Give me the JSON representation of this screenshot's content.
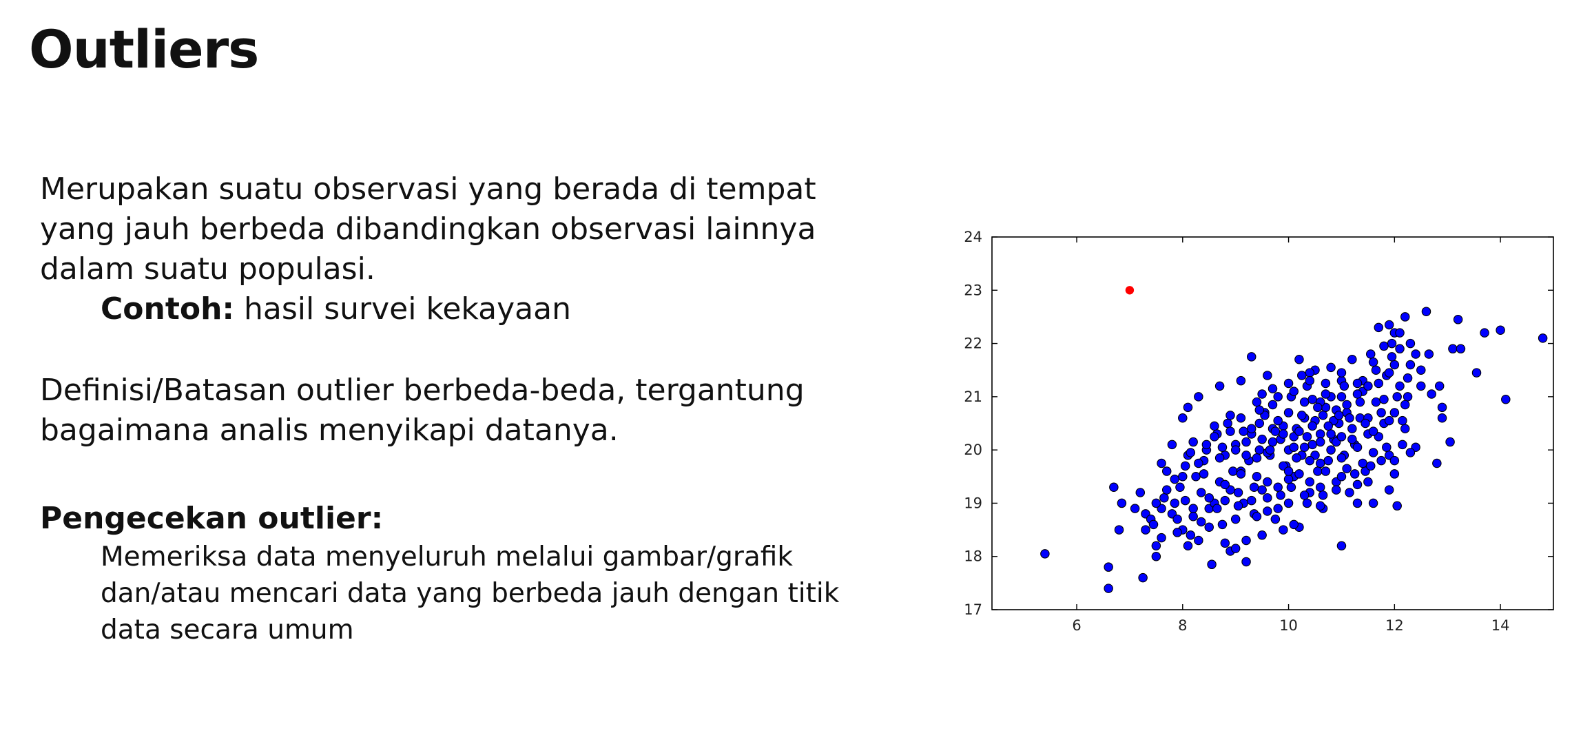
{
  "slide": {
    "title": "Outliers",
    "definition_lines": [
      "Merupakan suatu observasi yang berada di tempat",
      "yang jauh berbeda dibandingkan observasi lainnya",
      "dalam suatu populasi."
    ],
    "example_label": "Contoh:",
    "example_text": " hasil survei kekayaan",
    "note_lines": [
      "Definisi/Batasan outlier berbeda-beda, tergantung",
      "bagaimana analis menyikapi datanya."
    ],
    "check_heading": "Pengecekan outlier:",
    "check_lines": [
      "Memeriksa data menyeluruh melalui gambar/grafik",
      "dan/atau mencari data yang berbeda jauh dengan titik",
      "data secara umum"
    ]
  },
  "chart_data": {
    "type": "scatter",
    "title": "",
    "xlabel": "",
    "ylabel": "",
    "xlim": [
      4.4,
      15.0
    ],
    "ylim": [
      17,
      24
    ],
    "xticks": [
      6,
      8,
      10,
      12,
      14
    ],
    "yticks": [
      17,
      18,
      19,
      20,
      21,
      22,
      23,
      24
    ],
    "grid": false,
    "series": [
      {
        "color": "#0000ff",
        "points": [
          [
            5.4,
            18.05
          ],
          [
            6.6,
            17.8
          ],
          [
            6.6,
            17.4
          ],
          [
            6.7,
            19.3
          ],
          [
            6.8,
            18.5
          ],
          [
            6.85,
            19.0
          ],
          [
            7.1,
            18.9
          ],
          [
            7.2,
            19.2
          ],
          [
            7.25,
            17.6
          ],
          [
            7.3,
            18.8
          ],
          [
            7.4,
            18.7
          ],
          [
            7.45,
            18.6
          ],
          [
            7.5,
            18.2
          ],
          [
            7.5,
            18.0
          ],
          [
            7.6,
            18.9
          ],
          [
            7.65,
            19.1
          ],
          [
            7.7,
            19.6
          ],
          [
            7.8,
            18.8
          ],
          [
            7.85,
            19.0
          ],
          [
            7.9,
            18.7
          ],
          [
            7.95,
            19.3
          ],
          [
            8.0,
            18.5
          ],
          [
            8.05,
            19.7
          ],
          [
            8.1,
            19.9
          ],
          [
            8.15,
            18.4
          ],
          [
            8.2,
            18.9
          ],
          [
            8.25,
            19.5
          ],
          [
            8.3,
            18.3
          ],
          [
            8.35,
            19.2
          ],
          [
            8.4,
            19.8
          ],
          [
            8.45,
            20.0
          ],
          [
            8.5,
            18.9
          ],
          [
            8.55,
            17.85
          ],
          [
            8.6,
            19.0
          ],
          [
            8.65,
            20.3
          ],
          [
            8.7,
            19.4
          ],
          [
            8.75,
            18.6
          ],
          [
            8.8,
            19.9
          ],
          [
            8.85,
            20.5
          ],
          [
            8.9,
            18.1
          ],
          [
            8.95,
            19.6
          ],
          [
            9.0,
            20.1
          ],
          [
            9.0,
            18.15
          ],
          [
            9.05,
            19.2
          ],
          [
            9.1,
            20.6
          ],
          [
            9.15,
            19.0
          ],
          [
            9.2,
            17.9
          ],
          [
            9.25,
            19.8
          ],
          [
            9.3,
            20.3
          ],
          [
            9.3,
            21.75
          ],
          [
            9.35,
            18.8
          ],
          [
            9.4,
            19.5
          ],
          [
            9.45,
            20.0
          ],
          [
            9.5,
            18.4
          ],
          [
            9.55,
            20.7
          ],
          [
            9.6,
            19.1
          ],
          [
            9.65,
            19.9
          ],
          [
            9.7,
            20.4
          ],
          [
            9.75,
            18.7
          ],
          [
            9.8,
            19.3
          ],
          [
            9.85,
            20.2
          ],
          [
            9.9,
            18.5
          ],
          [
            9.95,
            19.7
          ],
          [
            10.0,
            20.0
          ],
          [
            10.0,
            19.0
          ],
          [
            10.05,
            21.0
          ],
          [
            10.1,
            19.5
          ],
          [
            10.15,
            20.4
          ],
          [
            10.2,
            18.55
          ],
          [
            10.25,
            19.9
          ],
          [
            10.3,
            20.6
          ],
          [
            10.35,
            21.2
          ],
          [
            10.4,
            19.2
          ],
          [
            10.45,
            20.1
          ],
          [
            10.5,
            21.5
          ],
          [
            10.55,
            19.6
          ],
          [
            10.6,
            20.3
          ],
          [
            10.65,
            18.9
          ],
          [
            10.7,
            20.8
          ],
          [
            10.75,
            19.8
          ],
          [
            10.8,
            21.0
          ],
          [
            10.85,
            20.2
          ],
          [
            10.9,
            19.4
          ],
          [
            10.95,
            20.5
          ],
          [
            11.0,
            18.2
          ],
          [
            11.0,
            21.3
          ],
          [
            11.05,
            19.9
          ],
          [
            11.1,
            20.7
          ],
          [
            11.15,
            19.2
          ],
          [
            11.2,
            21.7
          ],
          [
            11.25,
            20.1
          ],
          [
            11.3,
            19.0
          ],
          [
            11.35,
            20.6
          ],
          [
            11.4,
            21.1
          ],
          [
            11.45,
            19.6
          ],
          [
            11.5,
            20.3
          ],
          [
            11.55,
            21.8
          ],
          [
            11.6,
            19.0
          ],
          [
            11.65,
            20.9
          ],
          [
            11.7,
            22.3
          ],
          [
            11.75,
            19.8
          ],
          [
            11.8,
            20.5
          ],
          [
            11.85,
            21.4
          ],
          [
            11.9,
            19.9
          ],
          [
            11.95,
            22.0
          ],
          [
            12.0,
            20.7
          ],
          [
            12.05,
            18.95
          ],
          [
            12.1,
            21.9
          ],
          [
            12.15,
            20.1
          ],
          [
            12.2,
            22.5
          ],
          [
            12.25,
            21.0
          ],
          [
            12.3,
            21.6
          ],
          [
            12.6,
            22.6
          ],
          [
            12.65,
            21.8
          ],
          [
            12.8,
            19.75
          ],
          [
            12.85,
            21.2
          ],
          [
            12.9,
            20.8
          ],
          [
            13.05,
            20.15
          ],
          [
            13.1,
            21.9
          ],
          [
            13.2,
            22.45
          ],
          [
            13.25,
            21.9
          ],
          [
            13.55,
            21.45
          ],
          [
            13.7,
            22.2
          ],
          [
            14.0,
            22.25
          ],
          [
            14.1,
            20.95
          ],
          [
            14.8,
            22.1
          ],
          [
            8.0,
            20.6
          ],
          [
            8.1,
            20.8
          ],
          [
            8.3,
            21.0
          ],
          [
            8.7,
            21.2
          ],
          [
            9.1,
            21.3
          ],
          [
            9.6,
            21.4
          ],
          [
            10.2,
            21.7
          ],
          [
            10.1,
            18.6
          ],
          [
            9.2,
            18.3
          ],
          [
            8.8,
            18.25
          ],
          [
            7.9,
            18.45
          ],
          [
            10.6,
            18.95
          ],
          [
            11.3,
            19.35
          ],
          [
            11.9,
            19.25
          ],
          [
            12.0,
            19.8
          ],
          [
            12.4,
            20.05
          ],
          [
            12.2,
            20.4
          ],
          [
            12.7,
            21.05
          ],
          [
            12.9,
            20.6
          ],
          [
            11.8,
            21.95
          ],
          [
            12.0,
            22.2
          ],
          [
            12.1,
            22.2
          ],
          [
            11.6,
            21.65
          ],
          [
            10.8,
            21.55
          ],
          [
            10.4,
            21.45
          ],
          [
            9.8,
            21.0
          ],
          [
            9.4,
            20.9
          ],
          [
            9.7,
            20.85
          ],
          [
            8.9,
            20.65
          ],
          [
            8.6,
            20.25
          ],
          [
            8.2,
            20.15
          ],
          [
            7.8,
            20.1
          ],
          [
            7.6,
            19.75
          ],
          [
            8.4,
            19.55
          ],
          [
            8.9,
            19.25
          ],
          [
            9.3,
            19.05
          ],
          [
            9.6,
            18.85
          ],
          [
            10.4,
            19.4
          ],
          [
            10.7,
            19.6
          ],
          [
            11.1,
            19.65
          ],
          [
            10.9,
            20.15
          ],
          [
            10.3,
            20.05
          ],
          [
            10.1,
            20.25
          ],
          [
            9.9,
            20.45
          ],
          [
            9.3,
            20.4
          ],
          [
            9.0,
            20.0
          ],
          [
            8.7,
            19.85
          ],
          [
            9.1,
            19.6
          ],
          [
            9.6,
            19.4
          ],
          [
            10.0,
            19.45
          ],
          [
            10.5,
            19.9
          ],
          [
            10.8,
            20.3
          ],
          [
            11.2,
            20.4
          ],
          [
            11.5,
            20.6
          ],
          [
            11.8,
            20.95
          ],
          [
            12.1,
            21.2
          ],
          [
            11.4,
            21.3
          ],
          [
            11.0,
            21.0
          ],
          [
            10.7,
            21.25
          ],
          [
            10.3,
            20.9
          ],
          [
            10.0,
            20.7
          ],
          [
            9.8,
            20.55
          ],
          [
            9.5,
            20.2
          ],
          [
            9.2,
            19.9
          ],
          [
            9.9,
            19.7
          ],
          [
            10.2,
            19.55
          ],
          [
            10.6,
            19.75
          ],
          [
            11.0,
            19.85
          ],
          [
            11.3,
            20.05
          ],
          [
            11.7,
            20.25
          ],
          [
            11.9,
            20.55
          ],
          [
            12.2,
            20.85
          ],
          [
            12.5,
            21.5
          ],
          [
            12.4,
            21.8
          ],
          [
            12.0,
            21.6
          ],
          [
            11.7,
            21.25
          ],
          [
            11.3,
            21.05
          ],
          [
            10.9,
            20.75
          ],
          [
            10.5,
            20.55
          ],
          [
            10.2,
            20.35
          ],
          [
            9.7,
            20.15
          ],
          [
            9.4,
            19.85
          ],
          [
            9.1,
            19.55
          ],
          [
            8.8,
            19.35
          ],
          [
            8.5,
            19.1
          ],
          [
            8.2,
            18.75
          ],
          [
            8.5,
            18.55
          ],
          [
            9.0,
            18.7
          ],
          [
            9.4,
            18.75
          ],
          [
            9.8,
            18.9
          ],
          [
            10.3,
            19.15
          ],
          [
            10.6,
            19.3
          ],
          [
            11.0,
            19.5
          ],
          [
            11.4,
            19.75
          ],
          [
            11.6,
            19.95
          ],
          [
            11.2,
            20.2
          ],
          [
            10.8,
            20.0
          ],
          [
            10.4,
            19.8
          ],
          [
            10.0,
            19.6
          ],
          [
            9.6,
            19.95
          ],
          [
            9.2,
            20.15
          ],
          [
            8.9,
            20.35
          ],
          [
            8.6,
            20.45
          ],
          [
            8.3,
            19.75
          ],
          [
            8.0,
            19.5
          ],
          [
            7.7,
            19.25
          ],
          [
            7.5,
            19.0
          ],
          [
            7.3,
            18.5
          ],
          [
            7.6,
            18.35
          ],
          [
            8.1,
            18.2
          ],
          [
            8.8,
            19.05
          ],
          [
            9.5,
            19.25
          ],
          [
            10.9,
            19.25
          ],
          [
            11.5,
            19.4
          ],
          [
            12.0,
            19.55
          ],
          [
            12.3,
            19.95
          ],
          [
            10.6,
            20.9
          ],
          [
            10.1,
            21.1
          ],
          [
            9.5,
            21.05
          ],
          [
            10.4,
            21.3
          ],
          [
            11.0,
            21.45
          ],
          [
            11.5,
            21.2
          ],
          [
            11.9,
            21.45
          ],
          [
            12.3,
            22.0
          ],
          [
            11.9,
            22.35
          ],
          [
            12.5,
            21.2
          ],
          [
            9.9,
            20.3
          ],
          [
            10.1,
            20.05
          ],
          [
            10.35,
            20.25
          ],
          [
            10.6,
            20.15
          ],
          [
            9.55,
            20.65
          ],
          [
            9.75,
            20.35
          ],
          [
            10.25,
            20.65
          ],
          [
            10.55,
            20.8
          ],
          [
            10.85,
            20.55
          ],
          [
            11.1,
            20.85
          ],
          [
            11.35,
            20.9
          ],
          [
            11.6,
            20.35
          ],
          [
            11.0,
            20.25
          ],
          [
            10.45,
            20.45
          ],
          [
            10.15,
            19.85
          ],
          [
            10.75,
            20.45
          ],
          [
            9.85,
            19.15
          ],
          [
            9.35,
            19.3
          ],
          [
            9.05,
            18.95
          ],
          [
            8.65,
            18.9
          ],
          [
            8.35,
            18.65
          ],
          [
            8.05,
            19.05
          ],
          [
            7.85,
            19.45
          ],
          [
            8.15,
            19.95
          ],
          [
            8.45,
            20.1
          ],
          [
            8.75,
            20.05
          ],
          [
            9.15,
            20.35
          ],
          [
            9.45,
            20.5
          ],
          [
            9.65,
            20.0
          ],
          [
            10.05,
            19.3
          ],
          [
            10.35,
            19.0
          ],
          [
            10.65,
            19.15
          ],
          [
            11.25,
            19.55
          ],
          [
            11.55,
            19.7
          ],
          [
            11.85,
            20.05
          ],
          [
            12.15,
            20.55
          ],
          [
            12.05,
            21.0
          ],
          [
            11.75,
            20.7
          ],
          [
            11.45,
            20.5
          ],
          [
            11.15,
            20.6
          ],
          [
            10.95,
            20.65
          ],
          [
            10.65,
            20.65
          ],
          [
            10.45,
            20.95
          ],
          [
            10.7,
            21.05
          ],
          [
            11.05,
            21.2
          ],
          [
            11.3,
            21.25
          ],
          [
            11.65,
            21.5
          ],
          [
            11.95,
            21.75
          ],
          [
            12.25,
            21.35
          ],
          [
            10.25,
            21.4
          ],
          [
            10.0,
            21.25
          ],
          [
            9.7,
            21.15
          ],
          [
            9.45,
            20.75
          ]
        ]
      },
      {
        "color": "#ff0000",
        "points": [
          [
            7.0,
            23.0
          ]
        ]
      }
    ]
  }
}
